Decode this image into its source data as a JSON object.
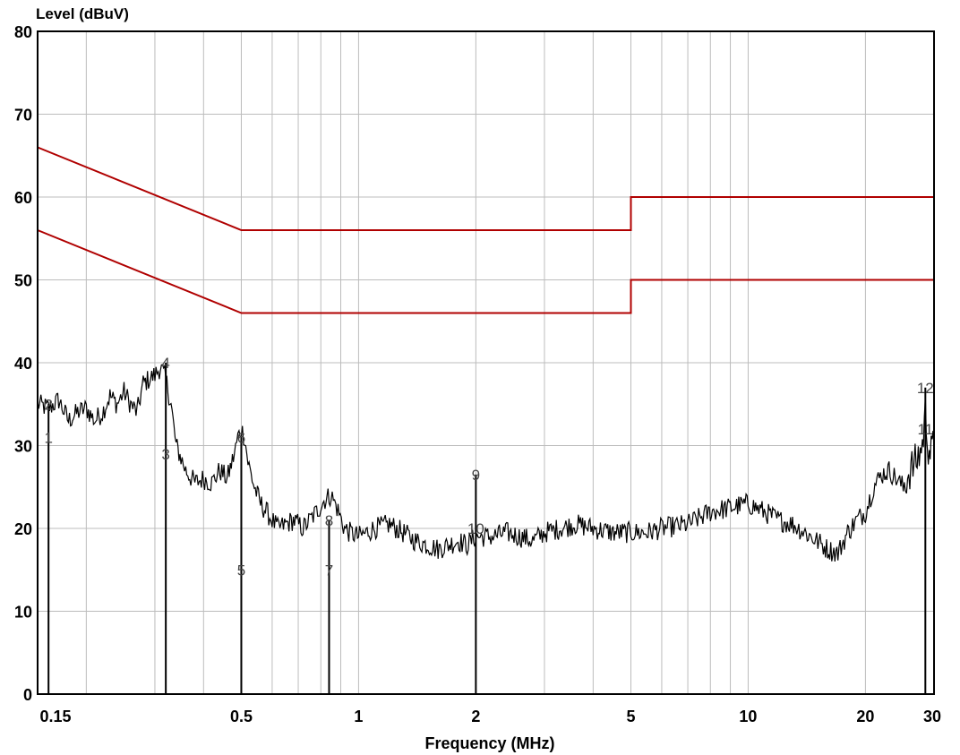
{
  "colors": {
    "grid": "#bcbcbc",
    "limit": "#b00000",
    "trace": "#000000",
    "frame": "#000000"
  },
  "chart_data": {
    "type": "line",
    "ylabel": "Level (dBuV)",
    "xlabel": "Frequency (MHz)",
    "xscale": "log",
    "xlim": [
      0.15,
      30
    ],
    "ylim": [
      0,
      80
    ],
    "grid": true,
    "x_tick_labels": [
      {
        "v": 0.15,
        "t": "0.15"
      },
      {
        "v": 0.5,
        "t": "0.5"
      },
      {
        "v": 1,
        "t": "1"
      },
      {
        "v": 2,
        "t": "2"
      },
      {
        "v": 5,
        "t": "5"
      },
      {
        "v": 10,
        "t": "10"
      },
      {
        "v": 20,
        "t": "20"
      },
      {
        "v": 30,
        "t": "30"
      }
    ],
    "y_tick_labels": [
      {
        "v": 0,
        "t": "0"
      },
      {
        "v": 10,
        "t": "10"
      },
      {
        "v": 20,
        "t": "20"
      },
      {
        "v": 30,
        "t": "30"
      },
      {
        "v": 40,
        "t": "40"
      },
      {
        "v": 50,
        "t": "50"
      },
      {
        "v": 60,
        "t": "60"
      },
      {
        "v": 70,
        "t": "70"
      },
      {
        "v": 80,
        "t": "80"
      }
    ],
    "limit_lines": [
      {
        "points": [
          [
            0.15,
            66
          ],
          [
            0.5,
            56
          ],
          [
            5,
            56
          ],
          [
            5,
            60
          ],
          [
            30,
            60
          ]
        ]
      },
      {
        "points": [
          [
            0.15,
            56
          ],
          [
            0.5,
            46
          ],
          [
            5,
            46
          ],
          [
            5,
            50
          ],
          [
            30,
            50
          ]
        ]
      }
    ],
    "series": [
      {
        "points": [
          [
            0.15,
            35
          ],
          [
            0.16,
            34.5
          ],
          [
            0.17,
            35.5
          ],
          [
            0.18,
            33
          ],
          [
            0.19,
            34
          ],
          [
            0.2,
            34.5
          ],
          [
            0.21,
            33
          ],
          [
            0.22,
            34
          ],
          [
            0.23,
            36
          ],
          [
            0.24,
            35
          ],
          [
            0.25,
            36.5
          ],
          [
            0.26,
            35
          ],
          [
            0.27,
            34
          ],
          [
            0.28,
            37.5
          ],
          [
            0.3,
            38.5
          ],
          [
            0.31,
            39.5
          ],
          [
            0.32,
            38
          ],
          [
            0.33,
            35
          ],
          [
            0.34,
            30
          ],
          [
            0.35,
            28.5
          ],
          [
            0.36,
            27
          ],
          [
            0.38,
            25.5
          ],
          [
            0.4,
            26
          ],
          [
            0.42,
            25.5
          ],
          [
            0.44,
            27
          ],
          [
            0.46,
            26
          ],
          [
            0.48,
            29
          ],
          [
            0.49,
            31
          ],
          [
            0.5,
            32
          ],
          [
            0.51,
            31
          ],
          [
            0.52,
            28
          ],
          [
            0.54,
            25
          ],
          [
            0.56,
            23
          ],
          [
            0.58,
            22
          ],
          [
            0.6,
            21
          ],
          [
            0.62,
            20
          ],
          [
            0.65,
            20.5
          ],
          [
            0.68,
            21
          ],
          [
            0.72,
            20
          ],
          [
            0.75,
            21
          ],
          [
            0.78,
            22
          ],
          [
            0.82,
            23.5
          ],
          [
            0.85,
            24
          ],
          [
            0.88,
            22.5
          ],
          [
            0.92,
            20
          ],
          [
            0.95,
            19.5
          ],
          [
            1,
            19
          ],
          [
            1.1,
            20
          ],
          [
            1.2,
            20.5
          ],
          [
            1.3,
            19.5
          ],
          [
            1.4,
            18.5
          ],
          [
            1.5,
            18
          ],
          [
            1.6,
            17.5
          ],
          [
            1.7,
            18
          ],
          [
            1.8,
            18.5
          ],
          [
            1.9,
            18
          ],
          [
            2,
            19
          ],
          [
            2.2,
            19
          ],
          [
            2.4,
            19.5
          ],
          [
            2.6,
            19
          ],
          [
            2.8,
            18.5
          ],
          [
            3,
            19.5
          ],
          [
            3.3,
            20
          ],
          [
            3.6,
            20.5
          ],
          [
            4,
            20
          ],
          [
            4.5,
            19.5
          ],
          [
            5,
            19.5
          ],
          [
            5.5,
            19.5
          ],
          [
            6,
            20
          ],
          [
            7,
            20.5
          ],
          [
            8,
            22
          ],
          [
            9,
            22.5
          ],
          [
            10,
            23
          ],
          [
            11,
            22
          ],
          [
            12,
            21
          ],
          [
            13,
            20.5
          ],
          [
            14,
            19.5
          ],
          [
            15,
            18.5
          ],
          [
            16,
            17.5
          ],
          [
            17,
            17
          ],
          [
            18,
            19.5
          ],
          [
            19,
            21
          ],
          [
            20,
            22
          ],
          [
            21,
            25
          ],
          [
            22,
            26.5
          ],
          [
            23,
            27
          ],
          [
            24,
            26
          ],
          [
            25,
            25
          ],
          [
            26,
            27
          ],
          [
            27,
            28
          ],
          [
            28,
            30
          ],
          [
            28.5,
            34
          ],
          [
            29,
            30
          ],
          [
            29.5,
            29
          ],
          [
            30,
            30
          ]
        ]
      }
    ],
    "markers": [
      {
        "x": 0.16,
        "y": 31,
        "label": "1"
      },
      {
        "x": 0.16,
        "y": 35,
        "label": "2"
      },
      {
        "x": 0.32,
        "y": 29,
        "label": "3"
      },
      {
        "x": 0.32,
        "y": 40,
        "label": "4"
      },
      {
        "x": 0.5,
        "y": 15,
        "label": "5"
      },
      {
        "x": 0.5,
        "y": 31,
        "label": "6"
      },
      {
        "x": 0.84,
        "y": 15,
        "label": "7"
      },
      {
        "x": 0.84,
        "y": 21,
        "label": "8"
      },
      {
        "x": 2,
        "y": 26.5,
        "label": "9"
      },
      {
        "x": 2,
        "y": 20,
        "label": "10"
      },
      {
        "x": 28.5,
        "y": 32,
        "label": "11"
      },
      {
        "x": 28.5,
        "y": 37,
        "label": "12"
      }
    ]
  }
}
